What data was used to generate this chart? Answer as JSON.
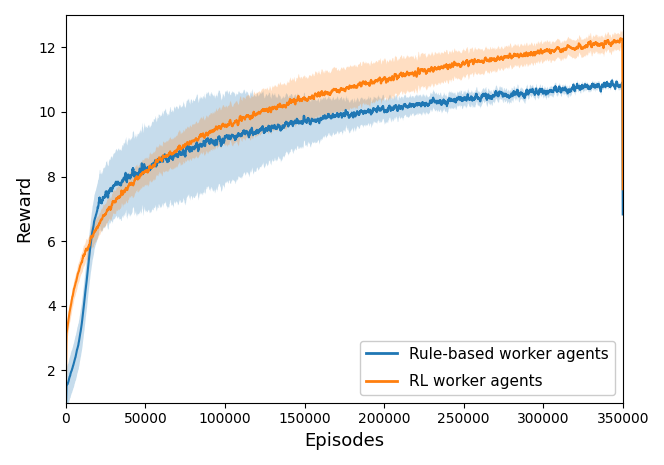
{
  "title": "",
  "xlabel": "Episodes",
  "ylabel": "Reward",
  "xlim": [
    0,
    350000
  ],
  "ylim": [
    1,
    13
  ],
  "yticks": [
    2,
    4,
    6,
    8,
    10,
    12
  ],
  "xticks": [
    0,
    50000,
    100000,
    150000,
    200000,
    250000,
    300000,
    350000
  ],
  "xtick_labels": [
    "0",
    "50000",
    "100000",
    "150000",
    "200000",
    "250000",
    "300000",
    "350000"
  ],
  "blue_color": "#1f77b4",
  "orange_color": "#ff7f0e",
  "blue_fill_alpha": 0.25,
  "orange_fill_alpha": 0.25,
  "legend_labels": [
    "Rule-based worker agents",
    "RL worker agents"
  ],
  "legend_loc": "lower right",
  "figsize": [
    6.64,
    4.65
  ],
  "dpi": 100,
  "n_points": 3500
}
